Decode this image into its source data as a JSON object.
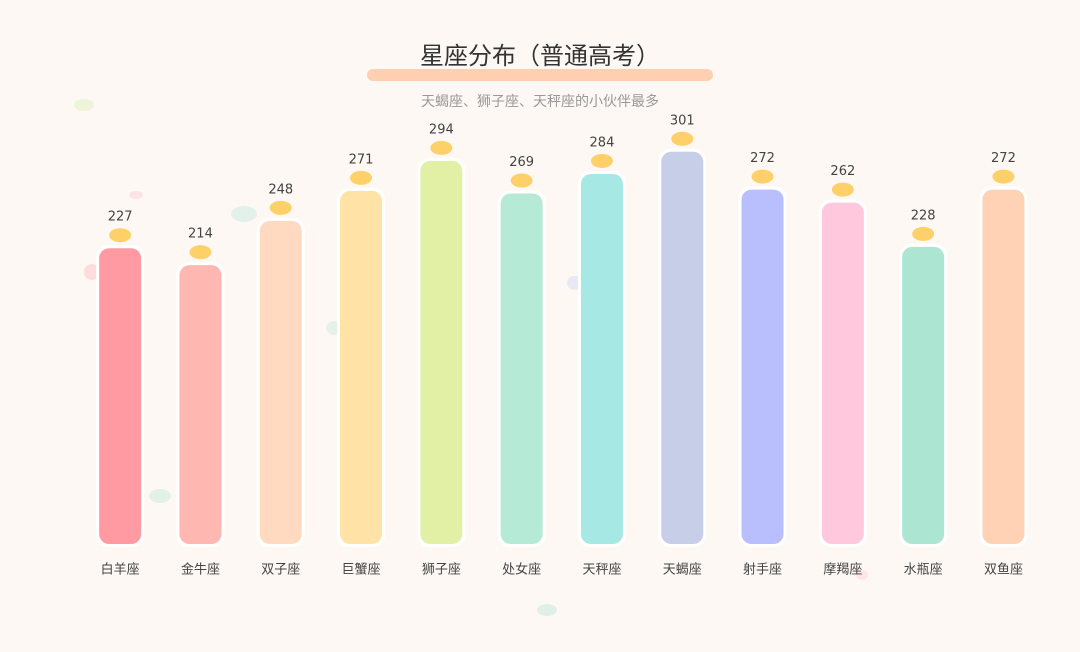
{
  "chart_data": {
    "type": "bar",
    "title": "星座分布（普通高考）",
    "subtitle": "天蝎座、狮子座、天秤座的小伙伴最多",
    "categories": [
      "白羊座",
      "金牛座",
      "双子座",
      "巨蟹座",
      "狮子座",
      "处女座",
      "天秤座",
      "天蝎座",
      "射手座",
      "摩羯座",
      "水瓶座",
      "双鱼座"
    ],
    "values": [
      227,
      214,
      248,
      271,
      294,
      269,
      284,
      301,
      272,
      262,
      228,
      272
    ],
    "colors": [
      "#ff9aa2",
      "#ffb7b2",
      "#ffdac1",
      "#ffe3a6",
      "#e2f0a6",
      "#b5ead7",
      "#a6e8e4",
      "#c7cee8",
      "#b8bffc",
      "#ffc8dd",
      "#ace6d3",
      "#ffd1b5"
    ]
  }
}
